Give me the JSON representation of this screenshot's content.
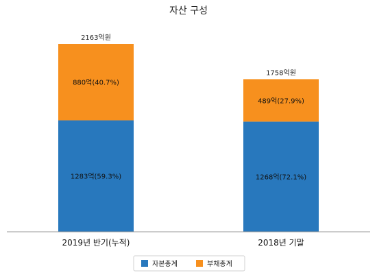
{
  "chart_data": {
    "type": "bar",
    "stacked": true,
    "title": "자산 구성",
    "categories": [
      "2019년 반기(누적)",
      "2018년 기말"
    ],
    "series": [
      {
        "name": "자본총계",
        "color": "#2878bd",
        "values": [
          1283,
          1268
        ],
        "labels": [
          "1283억(59.3%)",
          "1268억(72.1%)"
        ]
      },
      {
        "name": "부채총계",
        "color": "#f7901e",
        "values": [
          880,
          489
        ],
        "labels": [
          "880억(40.7%)",
          "489억(27.9%)"
        ]
      }
    ],
    "totals": [
      "2163억원",
      "1758억원"
    ],
    "ylim": [
      0,
      2500
    ],
    "grid": false,
    "legend": "bottom"
  }
}
